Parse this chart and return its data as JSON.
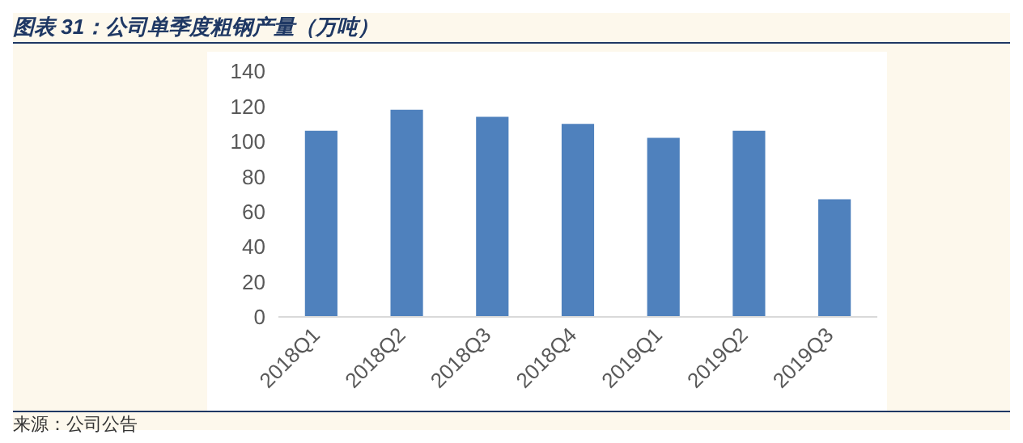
{
  "chart_data": {
    "type": "bar",
    "title": "图表 31：公司单季度粗钢产量（万吨）",
    "categories": [
      "2018Q1",
      "2018Q2",
      "2018Q3",
      "2018Q4",
      "2019Q1",
      "2019Q2",
      "2019Q3"
    ],
    "values": [
      106,
      118,
      114,
      110,
      102,
      106,
      67
    ],
    "color": "#4f81bd",
    "ylim": [
      0,
      140
    ],
    "yticks": [
      0,
      20,
      40,
      60,
      80,
      100,
      120,
      140
    ],
    "grid": false,
    "annotations": [
      "来源：公司公告"
    ]
  }
}
